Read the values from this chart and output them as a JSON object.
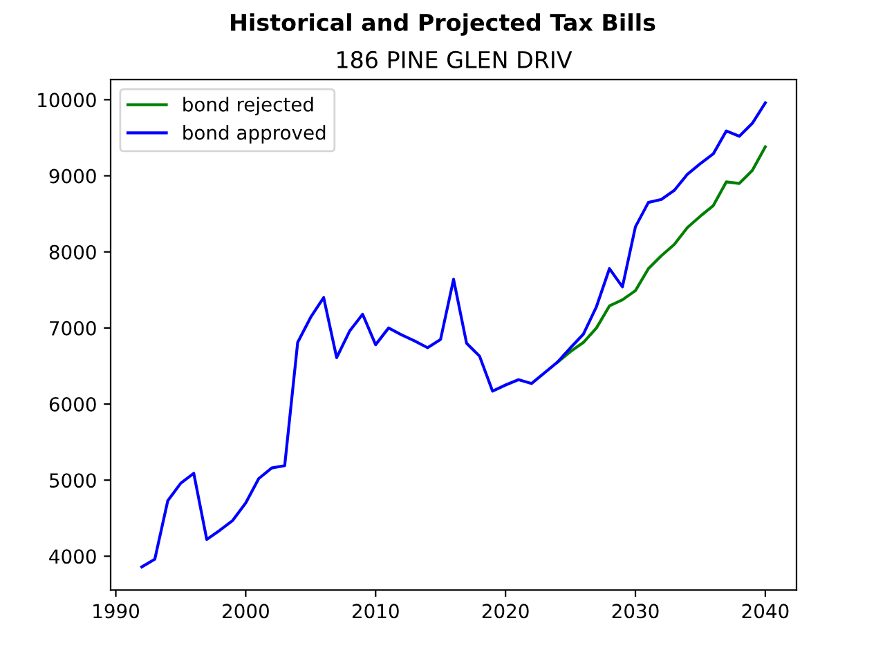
{
  "chart_data": {
    "type": "line",
    "title": "Historical and Projected Tax Bills",
    "subtitle": "186 PINE GLEN DRIV",
    "x": [
      1992,
      1993,
      1994,
      1995,
      1996,
      1997,
      1998,
      1999,
      2000,
      2001,
      2002,
      2003,
      2004,
      2005,
      2006,
      2007,
      2008,
      2009,
      2010,
      2011,
      2012,
      2013,
      2014,
      2015,
      2016,
      2017,
      2018,
      2019,
      2020,
      2021,
      2022,
      2023,
      2024,
      2025,
      2026,
      2027,
      2028,
      2029,
      2030,
      2031,
      2032,
      2033,
      2034,
      2035,
      2036,
      2037,
      2038,
      2039,
      2040
    ],
    "series": [
      {
        "name": "bond rejected",
        "color": "#008000",
        "values": [
          null,
          null,
          null,
          null,
          null,
          null,
          null,
          null,
          null,
          null,
          null,
          null,
          null,
          null,
          null,
          null,
          null,
          null,
          null,
          null,
          null,
          null,
          null,
          null,
          null,
          null,
          null,
          null,
          null,
          null,
          null,
          null,
          6550,
          6690,
          6810,
          7000,
          7290,
          7370,
          7490,
          7780,
          7950,
          8100,
          8320,
          8470,
          8610,
          8920,
          8900,
          9070,
          9380
        ]
      },
      {
        "name": "bond approved",
        "color": "#0000ff",
        "values": [
          3860,
          3960,
          4730,
          4960,
          5090,
          4220,
          4340,
          4470,
          4700,
          5020,
          5160,
          5190,
          6810,
          7140,
          7400,
          6610,
          6960,
          7180,
          6780,
          7000,
          6910,
          6830,
          6740,
          6850,
          7640,
          6800,
          6630,
          6170,
          6250,
          6320,
          6270,
          6410,
          6550,
          6740,
          6920,
          7280,
          7780,
          7540,
          8330,
          8650,
          8690,
          8810,
          9020,
          9160,
          9290,
          9590,
          9520,
          9690,
          9960
        ]
      }
    ],
    "xlim": [
      1989.6,
      2042.4
    ],
    "ylim": [
      3555,
      10265
    ],
    "xticks": [
      1990,
      2000,
      2010,
      2020,
      2030,
      2040
    ],
    "yticks": [
      4000,
      5000,
      6000,
      7000,
      8000,
      9000,
      10000
    ],
    "legend": "top left",
    "grid": false
  }
}
